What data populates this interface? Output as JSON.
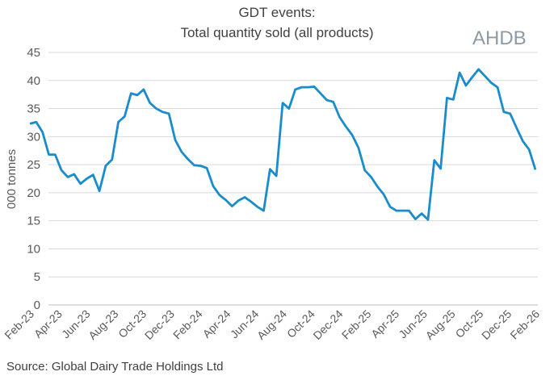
{
  "chart_data": {
    "type": "line",
    "title": "GDT events:",
    "subtitle": "Total quantity sold (all products)",
    "ylabel": "000 tonnes",
    "xlabel": "",
    "ylim": [
      0,
      45
    ],
    "yticks": [
      0,
      5,
      10,
      15,
      20,
      25,
      30,
      35,
      40,
      45
    ],
    "x_range": [
      "Feb-23",
      "Feb-26"
    ],
    "xtick_labels": [
      "Feb-23",
      "Apr-23",
      "Jun-23",
      "Aug-23",
      "Oct-23",
      "Dec-23",
      "Feb-24",
      "Apr-24",
      "Jun-24",
      "Aug-24",
      "Oct-24",
      "Dec-24",
      "Feb-25",
      "Apr-25",
      "Jun-25",
      "Aug-25",
      "Oct-25",
      "Dec-25",
      "Feb-26"
    ],
    "grid": "horizontal",
    "line_color": "#1a8ccc",
    "series": [
      {
        "values": [
          32.3,
          32.6,
          30.8,
          26.8,
          26.8,
          24,
          22.8,
          23.3,
          21.6,
          22.5,
          23.2,
          20.3,
          24.8,
          25.9,
          32.6,
          33.6,
          37.7,
          37.4,
          38.4,
          36,
          35,
          34.4,
          34.1,
          29.4,
          27.3,
          26,
          24.9,
          24.8,
          24.4,
          21.2,
          19.6,
          18.7,
          17.6,
          18.6,
          19.2,
          18.4,
          17.5,
          16.8,
          24.2,
          23,
          36,
          35,
          38.4,
          38.8,
          38.8,
          38.9,
          37.7,
          36.5,
          36.2,
          33.5,
          31.8,
          30.3,
          28,
          24,
          22.8,
          21.1,
          19.7,
          17.5,
          16.8,
          16.8,
          16.8,
          15.3,
          16.3,
          15.2,
          25.8,
          24.3,
          36.9,
          36.6,
          41.4,
          39.1,
          40.6,
          42,
          40.8,
          39.6,
          38.8,
          34.4,
          34.1,
          31.6,
          29.2,
          27.7,
          24.1
        ]
      }
    ]
  },
  "logo_text": "AHDB",
  "source": "Source: Global Dairy Trade Holdings Ltd"
}
